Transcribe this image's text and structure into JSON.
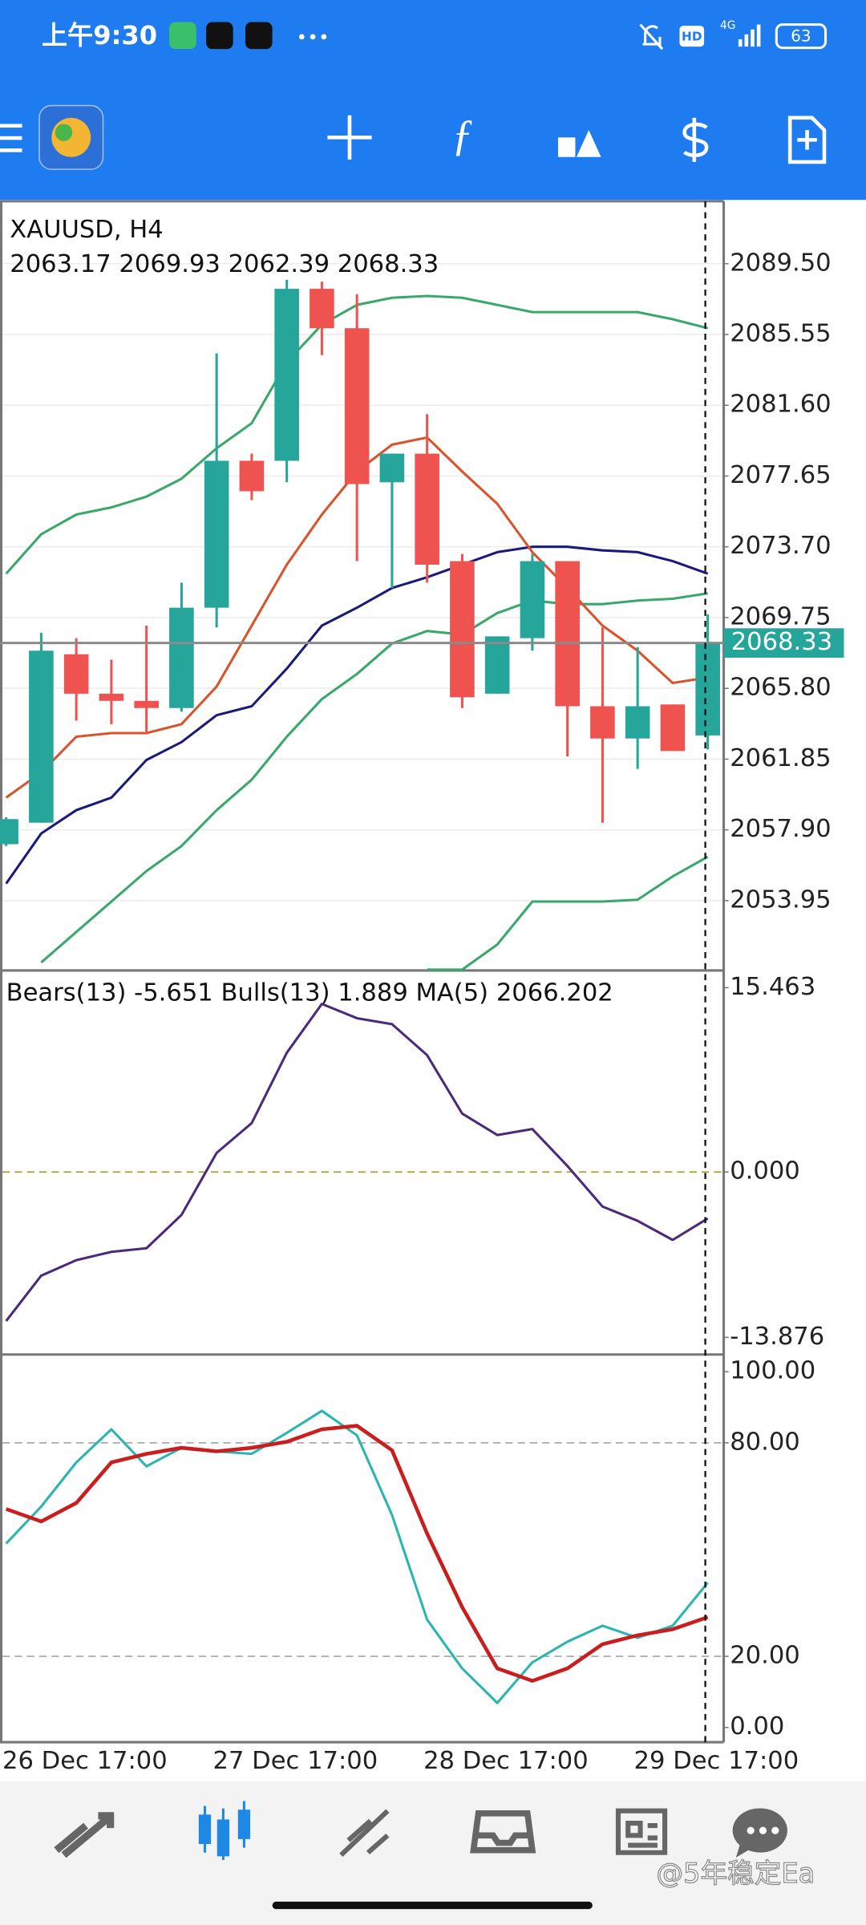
{
  "status_bar": {
    "time": "上午9:30",
    "hd": "HD",
    "network": "4G",
    "battery": "63"
  },
  "chart_data": [
    {
      "type": "candlestick",
      "title": "XAUUSD, H4",
      "subtitle": "2063.17 2069.93 2062.39 2068.33",
      "categories": [
        "26 Dec 17:00",
        null,
        null,
        null,
        null,
        null,
        "27 Dec 17:00",
        null,
        null,
        null,
        null,
        null,
        "28 Dec 17:00",
        null,
        null,
        null,
        null,
        null,
        "29 Dec 17:00",
        null,
        null
      ],
      "open": [
        2057.1,
        2058.3,
        2067.7,
        2065.5,
        2065.1,
        2064.7,
        2070.3,
        2078.5,
        2078.5,
        2088.1,
        2085.9,
        2077.3,
        2078.9,
        2072.9,
        2065.5,
        2068.6,
        2072.9,
        2064.8,
        2063.0,
        2064.9,
        2063.17
      ],
      "high": [
        2058.6,
        2068.9,
        2068.6,
        2067.4,
        2069.3,
        2071.7,
        2084.5,
        2078.9,
        2088.6,
        2088.5,
        2087.8,
        2078.9,
        2081.1,
        2073.3,
        2068.7,
        2073.3,
        2072.9,
        2069.2,
        2068.1,
        2064.9,
        2069.93
      ],
      "low": [
        2057.0,
        2058.3,
        2064.0,
        2063.8,
        2063.3,
        2064.5,
        2069.2,
        2076.3,
        2077.3,
        2084.4,
        2072.9,
        2071.4,
        2071.7,
        2064.7,
        2065.5,
        2067.9,
        2062.0,
        2058.3,
        2061.3,
        2062.3,
        2062.39
      ],
      "close": [
        2058.5,
        2067.9,
        2065.5,
        2065.1,
        2064.7,
        2070.3,
        2078.5,
        2076.8,
        2088.1,
        2085.9,
        2077.2,
        2078.9,
        2072.7,
        2065.3,
        2068.7,
        2072.9,
        2064.8,
        2063.0,
        2064.8,
        2062.3,
        2068.33
      ],
      "up_color": "#26a69a",
      "down_color": "#ef5350",
      "last_price_color": "#26a69a",
      "series": [
        {
          "color": "#3aa86b",
          "values": [
            2072.2,
            2074.4,
            2075.5,
            2075.9,
            2076.5,
            2077.5,
            2079.2,
            2080.6,
            2084.0,
            2086.1,
            2087.2,
            2087.6,
            2087.7,
            2087.6,
            2087.2,
            2086.8,
            2086.8,
            2086.8,
            2086.8,
            2086.4,
            2085.9
          ]
        },
        {
          "color": "#1a1a7a",
          "values": [
            2054.9,
            2057.7,
            2059.0,
            2059.7,
            2061.8,
            2062.8,
            2064.3,
            2064.8,
            2066.9,
            2069.3,
            2070.3,
            2071.4,
            2072.0,
            2072.7,
            2073.4,
            2073.7,
            2073.7,
            2073.5,
            2073.4,
            2072.9,
            2072.2
          ]
        },
        {
          "color": "#3aa86b",
          "values": [
            null,
            2050.5,
            2052.2,
            2053.9,
            2055.6,
            2057.0,
            2059.0,
            2060.7,
            2063.1,
            2065.2,
            2066.6,
            2068.3,
            2069.0,
            2068.8,
            2070.0,
            2070.7,
            2070.5,
            2070.5,
            2070.7,
            2070.8,
            2071.1
          ]
        },
        {
          "color": "#3aa86b",
          "values": [
            null,
            null,
            null,
            null,
            null,
            null,
            null,
            null,
            null,
            null,
            null,
            null,
            2050.1,
            2050.1,
            2051.5,
            2053.9,
            2053.9,
            2053.9,
            2054.0,
            2055.3,
            2056.4
          ]
        },
        {
          "color": "#d9532c",
          "values": [
            2059.7,
            2061.1,
            2063.1,
            2063.3,
            2063.3,
            2063.8,
            2065.9,
            2069.3,
            2072.7,
            2075.5,
            2077.9,
            2079.4,
            2079.8,
            2077.9,
            2076.1,
            2073.4,
            2071.4,
            2069.3,
            2067.9,
            2066.1,
            2066.4
          ]
        }
      ],
      "ylim": [
        2050.12,
        2092.92
      ],
      "yticks": [
        {
          "value": 2089.5,
          "label": "2089.50"
        },
        2085.55,
        {
          "value": 2081.6,
          "label": "2081.60"
        },
        2077.65,
        {
          "value": 2073.7,
          "label": "2073.70"
        },
        2069.75,
        {
          "value": 2065.8,
          "label": "2065.80"
        },
        2061.85,
        {
          "value": 2057.9,
          "label": "2057.90"
        },
        2053.95
      ],
      "grid": true
    },
    {
      "type": "line",
      "title": "Bears(13) -5.651 Bulls(13) 1.889 MA(5) 2066.202",
      "series": [
        {
          "color": "#4b2a7b",
          "values": [
            -12.5,
            -8.7,
            -7.4,
            -6.7,
            -6.4,
            -3.6,
            1.6,
            4.1,
            10.0,
            14.1,
            12.9,
            12.4,
            9.8,
            4.9,
            3.1,
            3.6,
            0.5,
            -2.9,
            -4.1,
            -5.7,
            -3.9
          ]
        }
      ],
      "ylim": [
        -15.21,
        16.7
      ],
      "yticks": [
        15.463,
        {
          "value": 0,
          "label": "0.000"
        },
        -13.876
      ],
      "levels": [
        0
      ],
      "level_color": "#a8a84a"
    },
    {
      "type": "line",
      "series": [
        {
          "color": "#2bb5b0",
          "values": [
            51.7,
            62.1,
            74.5,
            83.8,
            73.4,
            78.6,
            77.6,
            76.9,
            82.8,
            89.0,
            82.1,
            59.7,
            30.3,
            16.6,
            6.9,
            18.3,
            24.1,
            28.6,
            25.2,
            28.6,
            40.7
          ]
        },
        {
          "color": "#c81e1e",
          "values": [
            61.4,
            57.9,
            63.1,
            74.5,
            76.9,
            78.6,
            77.6,
            78.6,
            80.3,
            83.8,
            84.8,
            77.9,
            54.5,
            33.8,
            16.6,
            13.1,
            16.6,
            23.4,
            25.9,
            27.6,
            31.0
          ]
        }
      ],
      "ylim": [
        -4.14,
        104.14
      ],
      "yticks": [
        {
          "value": 100,
          "label": "100.00"
        },
        {
          "value": 80,
          "label": "80.00"
        },
        {
          "value": 20,
          "label": "20.00"
        },
        {
          "value": 0,
          "label": "0.00"
        }
      ],
      "levels": [
        80,
        20
      ],
      "level_color": "#aaaaaa"
    }
  ],
  "watermark": "@5年稳定Ea"
}
